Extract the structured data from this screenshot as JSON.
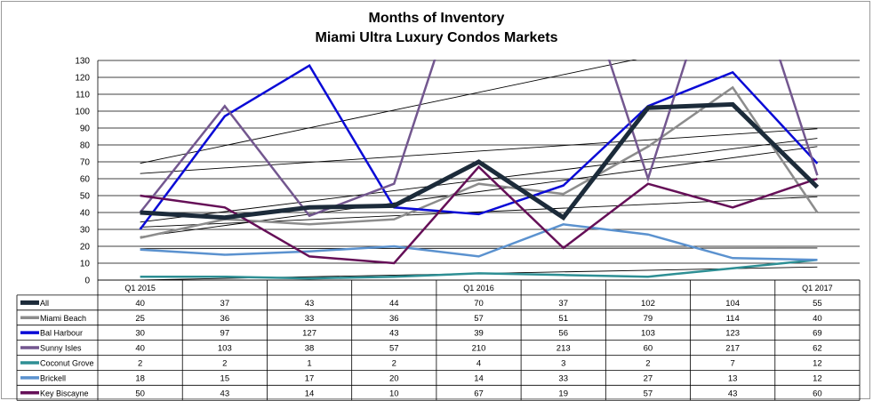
{
  "chart_data": {
    "type": "line",
    "title": "Months of Inventory",
    "subtitle": "Miami Ultra Luxury Condos Markets",
    "ylim": [
      0,
      130
    ],
    "yticks": [
      0,
      10,
      20,
      30,
      40,
      50,
      60,
      70,
      80,
      90,
      100,
      110,
      120,
      130
    ],
    "grid": true,
    "legend_placement": "table-below",
    "categories": [
      "Q1 2015",
      "",
      "",
      "",
      "Q1 2016",
      "",
      "",
      "",
      "Q1 2017"
    ],
    "series": [
      {
        "name": "All",
        "values": [
          40,
          37,
          43,
          44,
          70,
          37,
          102,
          104,
          55
        ],
        "color": "#1c2b3a",
        "width": 5
      },
      {
        "name": "Miami Beach",
        "values": [
          25,
          36,
          33,
          36,
          57,
          51,
          79,
          114,
          40
        ],
        "color": "#8c8c8c",
        "width": 2.5
      },
      {
        "name": "Bal Harbour",
        "values": [
          30,
          97,
          127,
          43,
          39,
          56,
          103,
          123,
          69
        ],
        "color": "#0a0ad6",
        "width": 2.5
      },
      {
        "name": "Sunny Isles",
        "values": [
          40,
          103,
          38,
          57,
          210,
          213,
          60,
          217,
          62
        ],
        "color": "#73578f",
        "width": 2.5
      },
      {
        "name": "Coconut Grove",
        "values": [
          2,
          2,
          1,
          2,
          4,
          3,
          2,
          7,
          12
        ],
        "color": "#2e8f94",
        "width": 2.5
      },
      {
        "name": "Brickell",
        "values": [
          18,
          15,
          17,
          20,
          14,
          33,
          27,
          13,
          12
        ],
        "color": "#5b92cf",
        "width": 2.5
      },
      {
        "name": "Key Biscayne",
        "values": [
          50,
          43,
          14,
          10,
          67,
          19,
          57,
          43,
          60
        ],
        "color": "#650f57",
        "width": 2.5
      }
    ],
    "trendlines": true
  }
}
